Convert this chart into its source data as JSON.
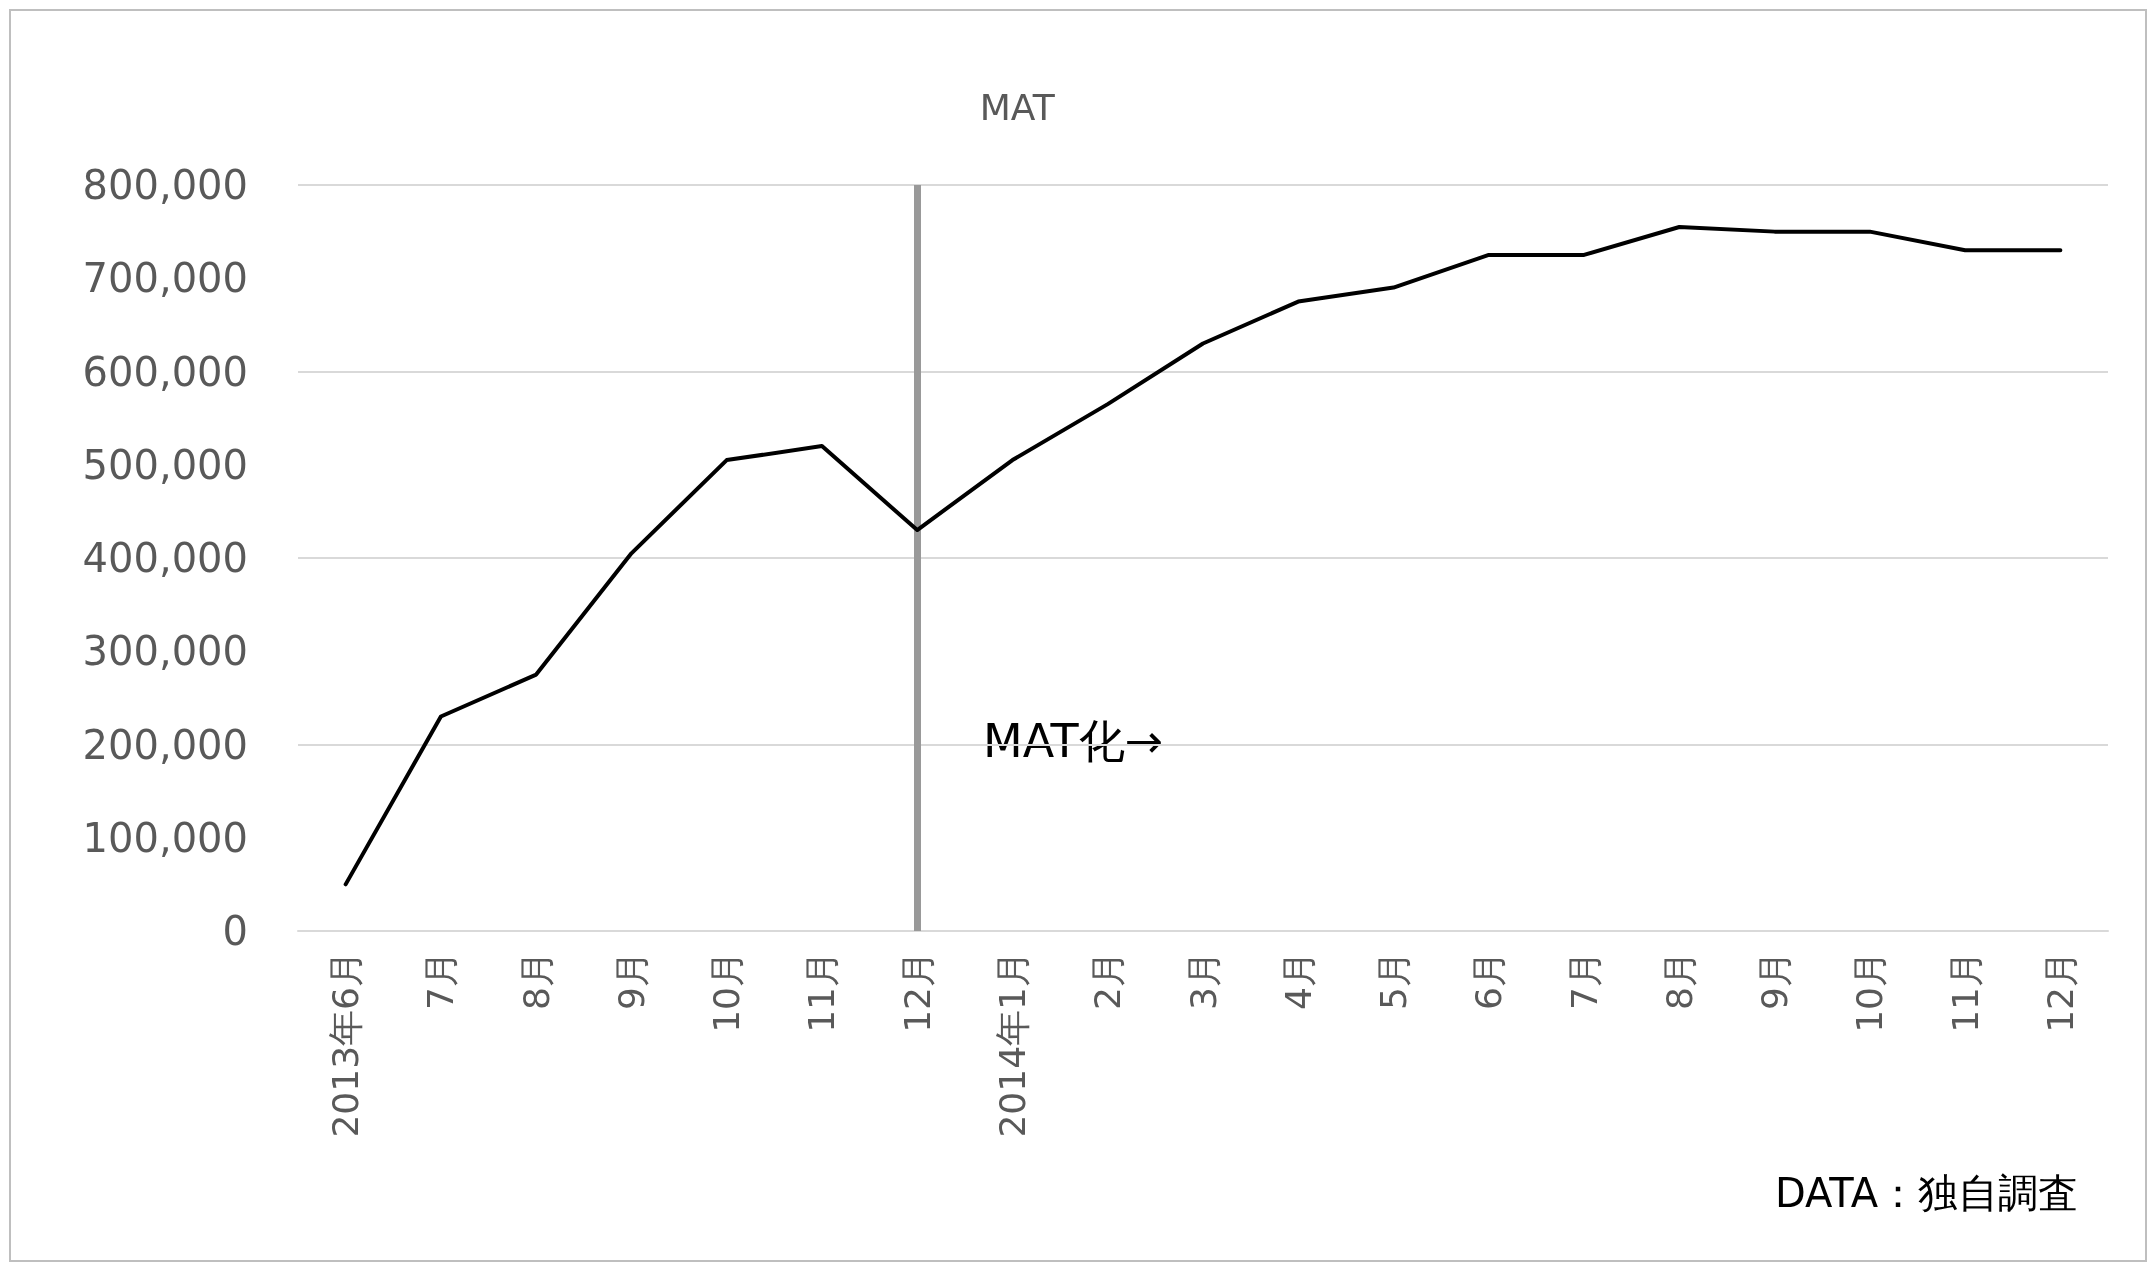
{
  "chart_data": {
    "type": "line",
    "categories": [
      "2013年6月",
      "7月",
      "8月",
      "9月",
      "10月",
      "11月",
      "12月",
      "2014年1月",
      "2月",
      "3月",
      "4月",
      "5月",
      "6月",
      "7月",
      "8月",
      "9月",
      "10月",
      "11月",
      "12月"
    ],
    "series": [
      {
        "color": "#000000",
        "values": [
          50000,
          230000,
          275000,
          405000,
          505000,
          520000,
          430000,
          505000,
          565000,
          630000,
          675000,
          690000,
          725000,
          725000,
          755000,
          750000,
          750000,
          730000,
          730000
        ]
      }
    ],
    "ylim": [
      0,
      800000
    ],
    "yticks": [
      0,
      {
        "value": 100000,
        "label": "100,000"
      },
      {
        "value": 200000,
        "label": "200,000"
      },
      {
        "value": 300000,
        "label": "300,000"
      },
      {
        "value": 400000,
        "label": "400,000"
      },
      {
        "value": 500000,
        "label": "500,000"
      },
      {
        "value": 600000,
        "label": "600,000"
      },
      {
        "value": 700000,
        "label": "700,000"
      },
      {
        "value": 800000,
        "label": "800,000"
      }
    ],
    "grid": "y",
    "marker": "none",
    "line_style": "solid",
    "ref_lines": [
      {
        "axis": "x",
        "value": "12月",
        "label": "MAT",
        "color": "#999999"
      }
    ],
    "annotations": [
      "MAT化→",
      "DATA：独自調査"
    ]
  }
}
